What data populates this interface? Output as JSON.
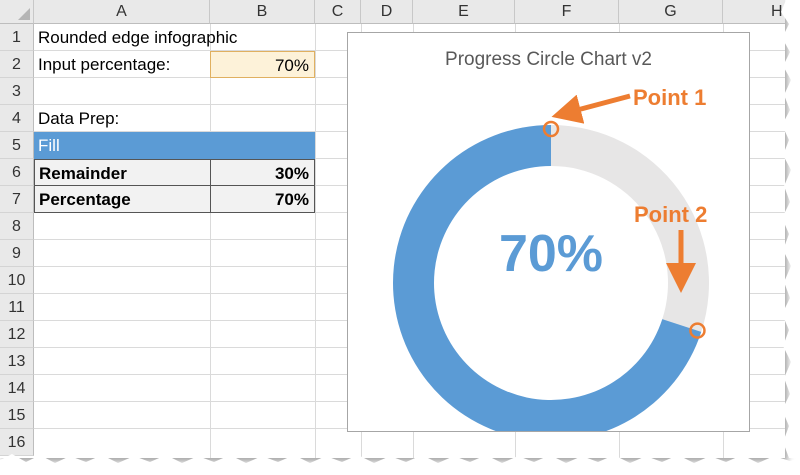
{
  "columns": [
    "A",
    "B",
    "C",
    "D",
    "E",
    "F",
    "G",
    "H"
  ],
  "rows": [
    "1",
    "2",
    "3",
    "4",
    "5",
    "6",
    "7",
    "8",
    "9",
    "10",
    "11",
    "12",
    "13",
    "14",
    "15",
    "16"
  ],
  "cells": {
    "A1": "Rounded edge infographic",
    "A2": "Input percentage:",
    "B2": "70%",
    "A4": "Data Prep:",
    "A5": "Fill",
    "A6": "Remainder",
    "B6": "30%",
    "A7": "Percentage",
    "B7": "70%"
  },
  "chart": {
    "title": "Progress Circle Chart v2",
    "center_label": "70%",
    "callout_1": "Point 1",
    "callout_2": "Point 2"
  },
  "chart_data": {
    "type": "pie",
    "title": "Progress Circle Chart v2",
    "variant": "doughnut",
    "center_label": "70%",
    "slices": [
      {
        "label": "Percentage",
        "value": 70,
        "color": "#5b9bd5"
      },
      {
        "label": "Remainder",
        "value": 30,
        "color": "#e7e6e6"
      }
    ],
    "annotations": [
      "Point 1",
      "Point 2"
    ],
    "annotation_color": "#ed7d31"
  },
  "colors": {
    "fill_header": "#5b9bd5",
    "input_bg": "#fdf2d9",
    "accent": "#ed7d31"
  }
}
